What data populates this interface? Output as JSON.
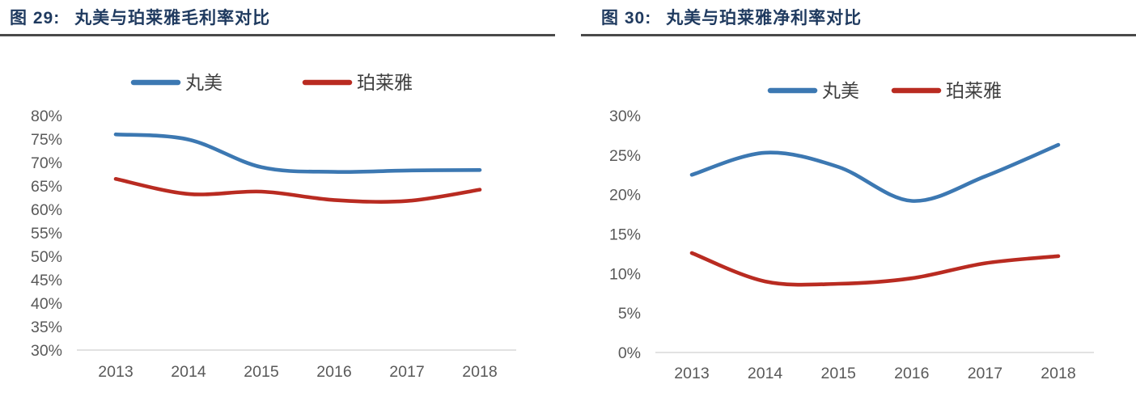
{
  "figures": [
    {
      "label": "图 29:",
      "title": "丸美与珀莱雅毛利率对比"
    },
    {
      "label": "图 30:",
      "title": "丸美与珀莱雅净利率对比"
    }
  ],
  "chart_data": [
    {
      "type": "line",
      "title": "丸美与珀莱雅毛利率对比",
      "categories": [
        "2013",
        "2014",
        "2015",
        "2016",
        "2017",
        "2018"
      ],
      "series": [
        {
          "name": "丸美",
          "color": "#3C78B2",
          "values": [
            76.0,
            74.9,
            69.0,
            68.0,
            68.3,
            68.4
          ]
        },
        {
          "name": "珀莱雅",
          "color": "#B92B21",
          "values": [
            66.5,
            63.3,
            63.8,
            62.0,
            61.8,
            64.2
          ]
        }
      ],
      "ylabel": "",
      "xlabel": "",
      "ylim": [
        30,
        80
      ],
      "ystep": 5,
      "ytick_suffix": "%",
      "grid": false,
      "smooth": true,
      "legend_position": "top"
    },
    {
      "type": "line",
      "title": "丸美与珀莱雅净利率对比",
      "categories": [
        "2013",
        "2014",
        "2015",
        "2016",
        "2017",
        "2018"
      ],
      "series": [
        {
          "name": "丸美",
          "color": "#3C78B2",
          "values": [
            22.5,
            25.3,
            23.5,
            19.2,
            22.3,
            26.3
          ]
        },
        {
          "name": "珀莱雅",
          "color": "#B92B21",
          "values": [
            12.6,
            9.0,
            8.7,
            9.4,
            11.3,
            12.2
          ]
        }
      ],
      "ylabel": "",
      "xlabel": "",
      "ylim": [
        0,
        30
      ],
      "ystep": 5,
      "ytick_suffix": "%",
      "grid": false,
      "smooth": true,
      "legend_position": "top"
    }
  ],
  "colors": {
    "title_text": "#1F3A5F",
    "title_rule": "#4A4A4A",
    "axis_text": "#595959",
    "legend_text": "#404040",
    "baseline": "#D9D9D9"
  }
}
